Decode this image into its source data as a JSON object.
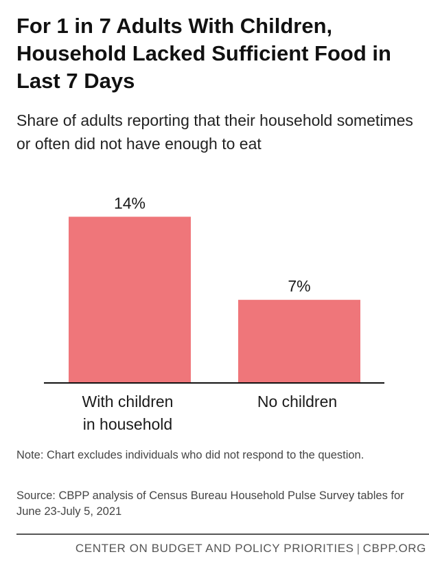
{
  "chart_data": {
    "type": "bar",
    "title": "For 1 in 7 Adults With Children, Household Lacked Sufficient Food in Last 7 Days",
    "subtitle": "Share of adults reporting that their household sometimes or often did not have enough to eat",
    "categories": [
      [
        "With children",
        "in household"
      ],
      [
        "No children"
      ]
    ],
    "values": [
      14,
      7
    ],
    "value_labels": [
      "14%",
      "7%"
    ],
    "unit": "%",
    "ylim": [
      0,
      17.2
    ],
    "grid": false,
    "legend": "none",
    "bar_color": "#ef767a",
    "baseline_color": "#111111"
  },
  "note": "Note: Chart excludes individuals who did not respond to the question.",
  "source": "Source: CBPP analysis of Census Bureau Household Pulse Survey tables for June 23-July 5, 2021",
  "footer": {
    "org": "CENTER ON BUDGET AND POLICY PRIORITIES",
    "separator": "|",
    "site": "CBPP.ORG"
  }
}
